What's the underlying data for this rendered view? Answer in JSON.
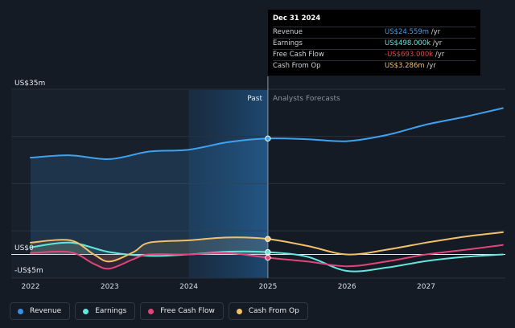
{
  "chart_data": {
    "type": "line",
    "ylabel_top": "US$35m",
    "ylabel_zero": "US$0",
    "ylabel_bottom": "-US$5m",
    "ylim": [
      -5,
      35
    ],
    "xlim": [
      2022,
      2028
    ],
    "x_ticks": [
      "2022",
      "2023",
      "2024",
      "2025",
      "2026",
      "2027"
    ],
    "past_label": "Past",
    "forecast_label": "Analysts Forecasts",
    "divider_x": 2025,
    "grid": true,
    "legend_position": "bottom-left",
    "series": [
      {
        "name": "Revenue",
        "color": "#3fa2f0",
        "points": [
          [
            2022,
            20.5
          ],
          [
            2022.5,
            21.0
          ],
          [
            2023,
            20.2
          ],
          [
            2023.5,
            21.8
          ],
          [
            2024,
            22.2
          ],
          [
            2024.5,
            23.8
          ],
          [
            2025,
            24.559
          ],
          [
            2025.5,
            24.4
          ],
          [
            2026,
            24.0
          ],
          [
            2026.5,
            25.3
          ],
          [
            2027,
            27.5
          ],
          [
            2027.5,
            29.2
          ],
          [
            2027.97,
            31.0
          ]
        ]
      },
      {
        "name": "Earnings",
        "color": "#64e6de",
        "points": [
          [
            2022,
            1.5
          ],
          [
            2022.5,
            2.5
          ],
          [
            2023,
            0.5
          ],
          [
            2023.5,
            -0.3
          ],
          [
            2024,
            0.0
          ],
          [
            2024.5,
            0.6
          ],
          [
            2025,
            0.498
          ],
          [
            2025.5,
            -0.5
          ],
          [
            2026,
            -3.5
          ],
          [
            2026.5,
            -2.8
          ],
          [
            2027,
            -1.4
          ],
          [
            2027.5,
            -0.5
          ],
          [
            2027.97,
            0.0
          ]
        ]
      },
      {
        "name": "Free Cash Flow",
        "color": "#e0457b",
        "points": [
          [
            2022,
            0.3
          ],
          [
            2022.5,
            0.5
          ],
          [
            2022.8,
            -2.0
          ],
          [
            2023,
            -3.0
          ],
          [
            2023.3,
            -1.0
          ],
          [
            2023.5,
            0.0
          ],
          [
            2024,
            0.0
          ],
          [
            2024.5,
            0.3
          ],
          [
            2025,
            -0.693
          ],
          [
            2025.5,
            -1.5
          ],
          [
            2026,
            -2.5
          ],
          [
            2026.5,
            -1.5
          ],
          [
            2027,
            0.0
          ],
          [
            2027.5,
            1.0
          ],
          [
            2027.97,
            2.0
          ]
        ]
      },
      {
        "name": "Cash From Op",
        "color": "#f0c06a",
        "points": [
          [
            2022,
            2.5
          ],
          [
            2022.5,
            3.0
          ],
          [
            2022.8,
            0.0
          ],
          [
            2023,
            -1.5
          ],
          [
            2023.3,
            0.5
          ],
          [
            2023.5,
            2.5
          ],
          [
            2024,
            3.0
          ],
          [
            2024.5,
            3.6
          ],
          [
            2025,
            3.286
          ],
          [
            2025.5,
            1.8
          ],
          [
            2026,
            0.0
          ],
          [
            2026.5,
            1.0
          ],
          [
            2027,
            2.5
          ],
          [
            2027.5,
            3.8
          ],
          [
            2027.97,
            4.7
          ]
        ]
      }
    ]
  },
  "tooltip": {
    "title": "Dec 31 2024",
    "rows": [
      {
        "label": "Revenue",
        "value": "US$24.559m",
        "unit": " /yr",
        "color": "#3fa2f0"
      },
      {
        "label": "Earnings",
        "value": "US$498.000k",
        "unit": " /yr",
        "color": "#64e6de"
      },
      {
        "label": "Free Cash Flow",
        "value": "-US$693.000k",
        "unit": " /yr",
        "color": "#e0454a"
      },
      {
        "label": "Cash From Op",
        "value": "US$3.286m",
        "unit": " /yr",
        "color": "#f0c06a"
      }
    ]
  },
  "legend": [
    {
      "label": "Revenue",
      "color": "#3f8fe0"
    },
    {
      "label": "Earnings",
      "color": "#64e6de"
    },
    {
      "label": "Free Cash Flow",
      "color": "#e0457b"
    },
    {
      "label": "Cash From Op",
      "color": "#f0c06a"
    }
  ]
}
